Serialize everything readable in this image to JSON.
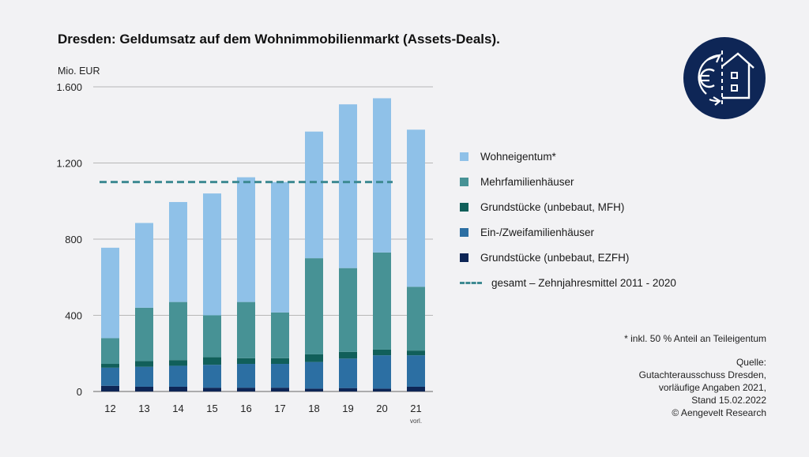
{
  "title": "Dresden: Geldumsatz auf dem Wohnimmobilienmarkt (Assets-Deals).",
  "footnote": "* inkl. 50 % Anteil an Teileigentum",
  "source_lines": [
    "Quelle:",
    "Gutachterausschuss Dresden,",
    "vorläufige Angaben 2021,",
    "Stand 15.02.2022",
    "© Aengevelt Research"
  ],
  "logo_icon": "euro-house-exchange-icon",
  "colors": {
    "wohneigentum": "#8fc1e8",
    "mfh": "#479295",
    "grund_mfh": "#115f5a",
    "ezfh": "#2c6fa3",
    "grund_ezfh": "#0e2656",
    "mittel_line": "#3e8a92",
    "logo_bg": "#0e2656"
  },
  "chart_data": {
    "type": "bar",
    "stacked": true,
    "ylabel": "Mio. EUR",
    "ylim": [
      0,
      1600
    ],
    "yticks": [
      0,
      400,
      800,
      1200,
      1600
    ],
    "ytick_labels": [
      "0",
      "400",
      "800",
      "1.200",
      "1.600"
    ],
    "grid": true,
    "legend_position": "right",
    "categories": [
      "12",
      "13",
      "14",
      "15",
      "16",
      "17",
      "18",
      "19",
      "20",
      "21"
    ],
    "category_sublabels": [
      "",
      "",
      "",
      "",
      "",
      "",
      "",
      "",
      "",
      "vorl."
    ],
    "series": [
      {
        "name": "Grundstücke (unbebaut, EZFH)",
        "key": "grund_ezfh",
        "values": [
          30,
          25,
          25,
          20,
          20,
          20,
          15,
          18,
          15,
          25
        ]
      },
      {
        "name": "Ein-/Zweifamilienhäuser",
        "key": "ezfh",
        "values": [
          95,
          105,
          110,
          120,
          125,
          125,
          140,
          155,
          175,
          165
        ]
      },
      {
        "name": "Grundstücke (unbebaut, MFH)",
        "key": "grund_mfh",
        "values": [
          20,
          30,
          30,
          40,
          30,
          30,
          40,
          35,
          30,
          25
        ]
      },
      {
        "name": "Mehrfamilienhäuser",
        "key": "mfh",
        "values": [
          135,
          280,
          305,
          220,
          295,
          240,
          505,
          440,
          510,
          335
        ]
      },
      {
        "name": "Wohneigentum*",
        "key": "wohneigentum",
        "values": [
          475,
          445,
          525,
          640,
          655,
          685,
          665,
          860,
          810,
          825
        ]
      }
    ],
    "mittel_line": {
      "name": "gesamt – Zehnjahresmittel 2011 - 2020",
      "value": 1100,
      "from": "12",
      "to": "20"
    },
    "legend_order": [
      "wohneigentum",
      "mfh",
      "grund_mfh",
      "ezfh",
      "grund_ezfh",
      "mittel"
    ]
  }
}
